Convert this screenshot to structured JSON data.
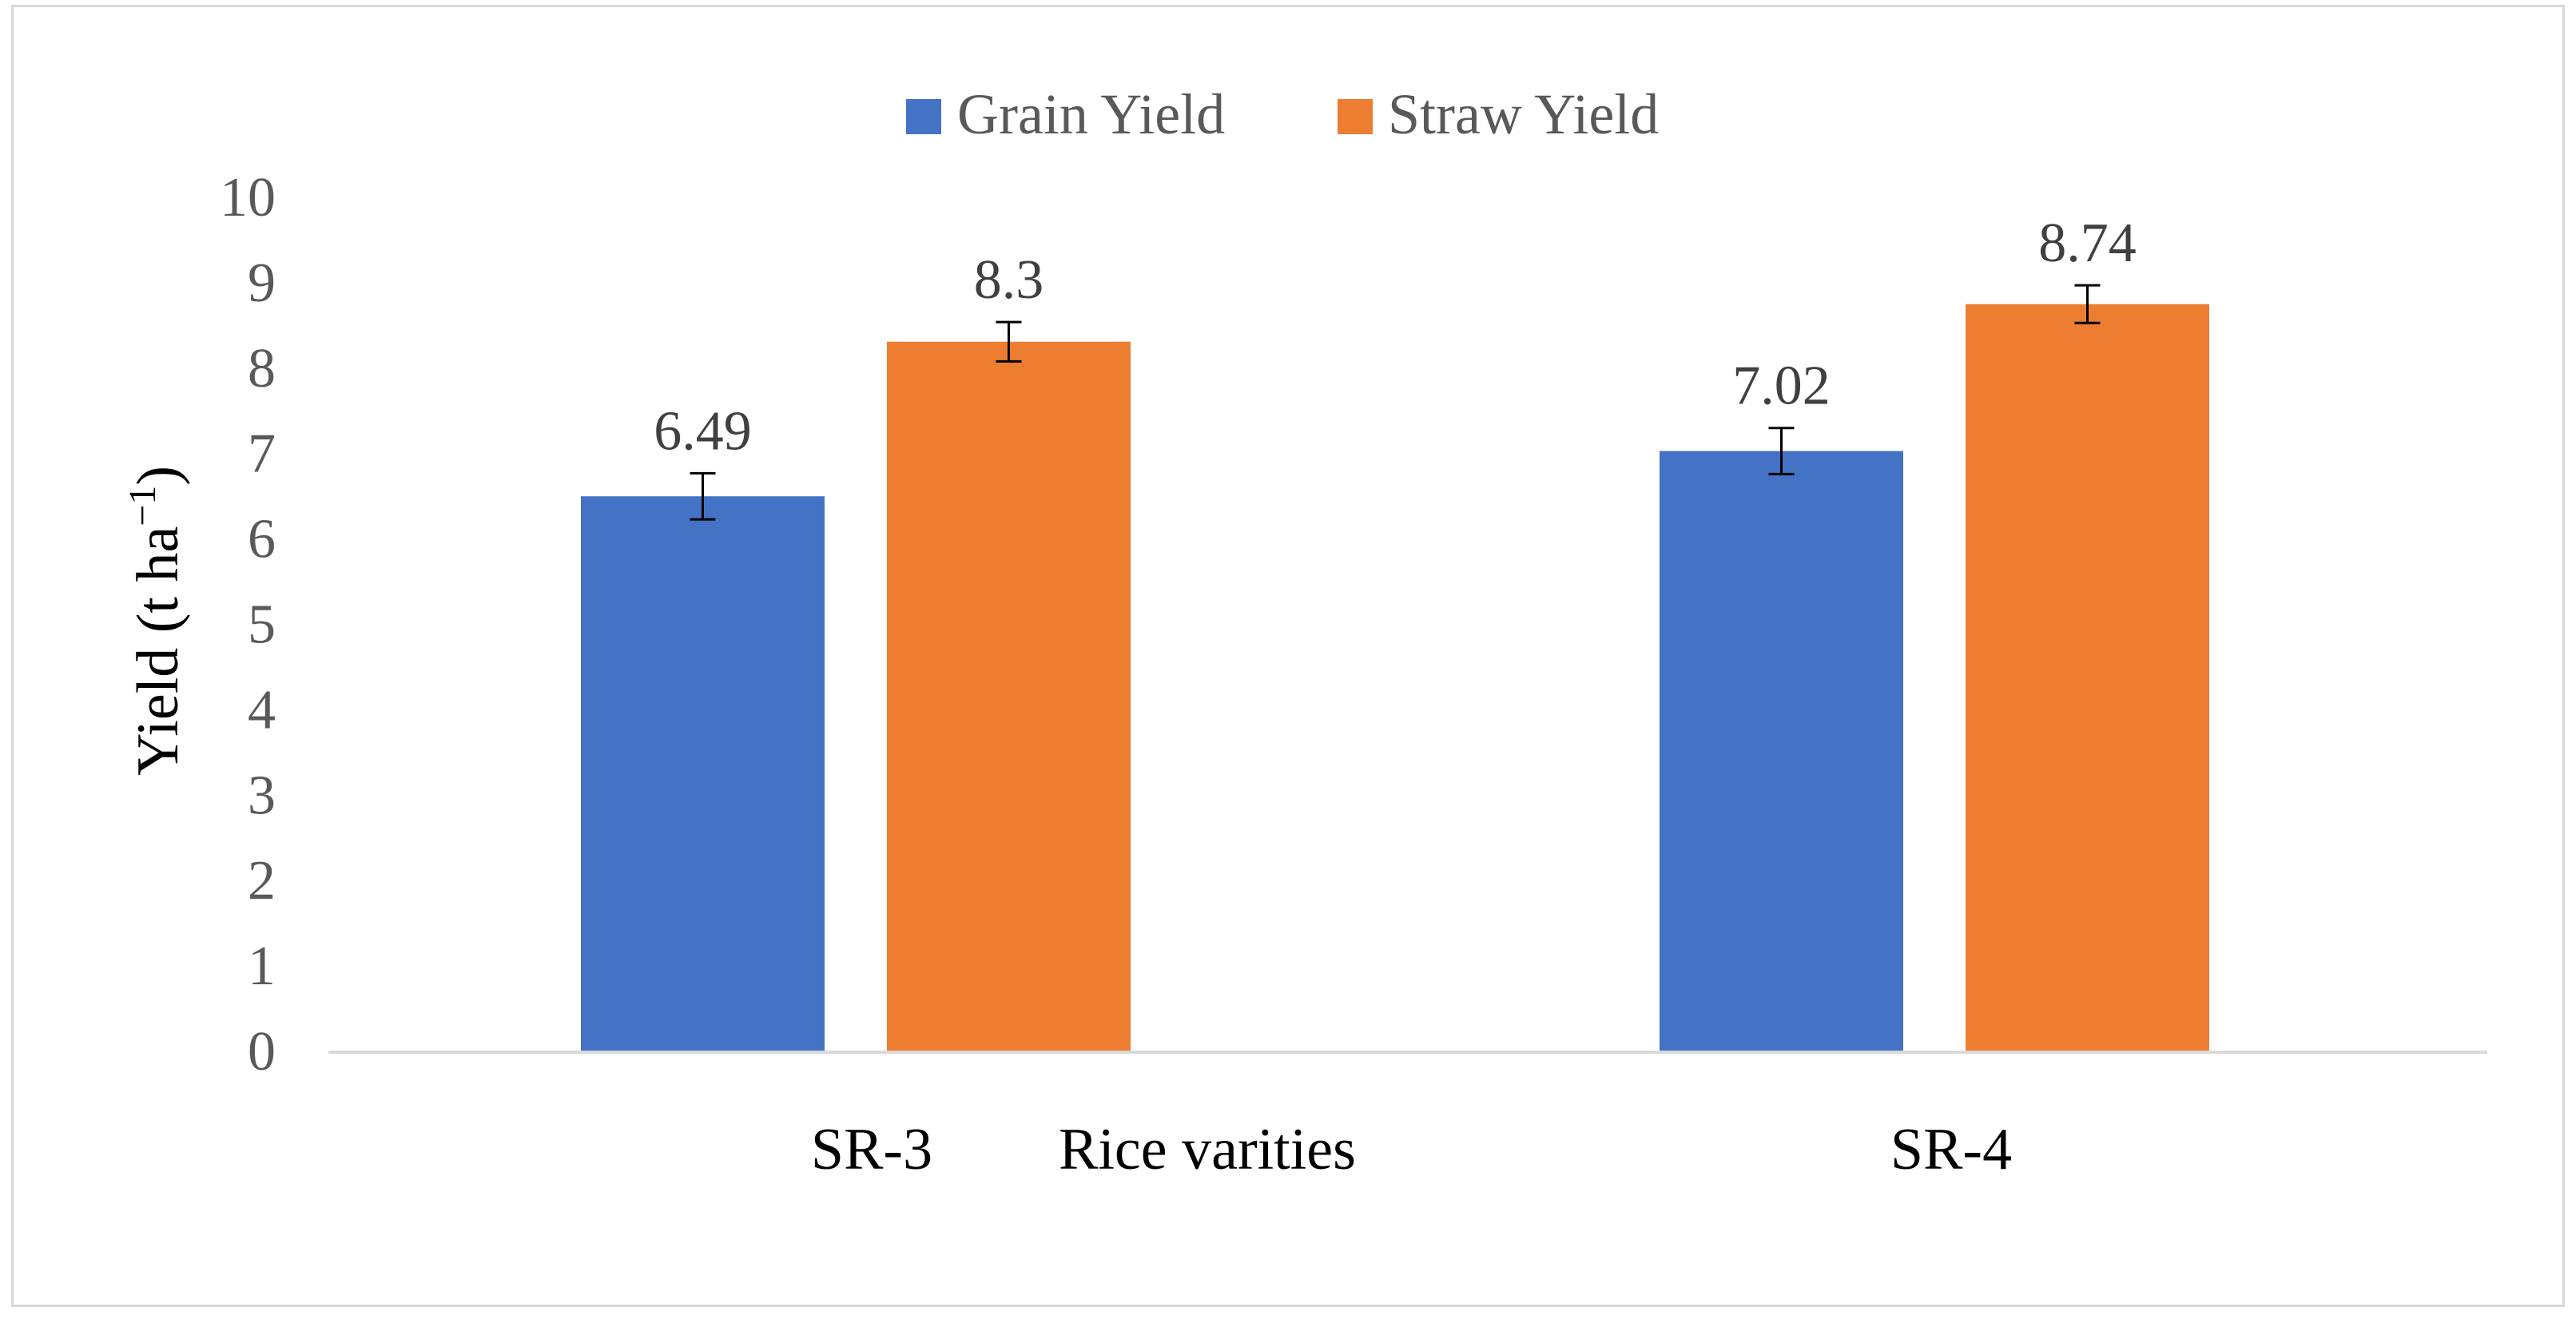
{
  "chart_data": {
    "type": "bar",
    "title": "",
    "categories": [
      "SR-3",
      "SR-4"
    ],
    "series": [
      {
        "name": "Grain Yield",
        "color": "#4472C4",
        "values": [
          6.49,
          7.02
        ],
        "errors": [
          0.27,
          0.27
        ],
        "labels": [
          "6.49",
          "7.02"
        ]
      },
      {
        "name": "Straw Yield",
        "color": "#ED7D31",
        "values": [
          8.3,
          8.74
        ],
        "errors": [
          0.23,
          0.22
        ],
        "labels": [
          "8.3",
          "8.74"
        ]
      }
    ],
    "xlabel": "Rice varities",
    "ylabel": {
      "main": "Yield (t ha",
      "superscript": "−1",
      "close": ")"
    },
    "ylim": [
      0,
      10
    ],
    "yticks": [
      "0",
      "1",
      "2",
      "3",
      "4",
      "5",
      "6",
      "7",
      "8",
      "9",
      "10"
    ],
    "grid": false,
    "legend_position": "top-center",
    "axis_color": "#d9d9d9"
  }
}
